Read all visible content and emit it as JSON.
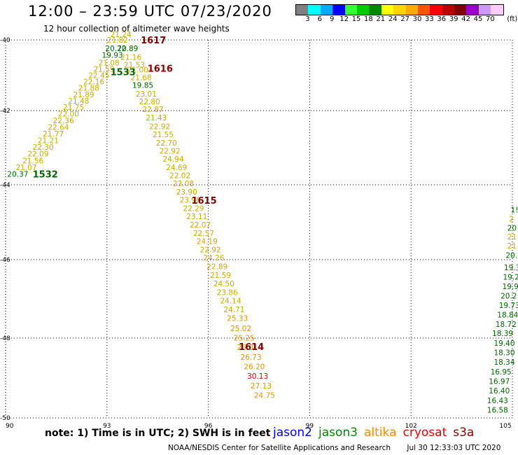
{
  "header": {
    "title": "12:00 – 23:59 UTC 07/23/2020",
    "subtitle": "12 hour collection of altimeter wave heights"
  },
  "legend": {
    "unit": "(ft)",
    "ticks": [
      "3",
      "6",
      "9",
      "12",
      "15",
      "18",
      "21",
      "24",
      "27",
      "30",
      "33",
      "36",
      "39",
      "42",
      "45",
      "70"
    ],
    "colors": [
      "#808080",
      "#00ffff",
      "#00aaff",
      "#0000ff",
      "#33ff33",
      "#00cc00",
      "#008800",
      "#ffff00",
      "#ffd700",
      "#ffaa00",
      "#ff5500",
      "#ff0000",
      "#bb0000",
      "#800000",
      "#9900cc",
      "#cc99ff",
      "#ffccff"
    ]
  },
  "map": {
    "lon_ticks": [
      "90",
      "93",
      "96",
      "99",
      "102",
      "105"
    ],
    "lat_ticks": [
      "-40",
      "-42",
      "-44",
      "-46",
      "-48",
      "-50"
    ],
    "pass_labels": [
      {
        "text": "1617",
        "color": "#800000",
        "lon": 94.0,
        "lat": -40.1
      },
      {
        "text": "1616",
        "color": "#800000",
        "lon": 94.2,
        "lat": -40.9
      },
      {
        "text": "1533",
        "color": "#006600",
        "lon": 93.1,
        "lat": -41.0
      },
      {
        "text": "1532",
        "color": "#006600",
        "lon": 90.8,
        "lat": -43.8
      },
      {
        "text": "1615",
        "color": "#800000",
        "lon": 95.5,
        "lat": -44.5
      },
      {
        "text": "1614",
        "color": "#800000",
        "lon": 96.9,
        "lat": -48.3
      }
    ],
    "tracks": [
      {
        "name": "1532-1533",
        "points": [
          {
            "v": "20.37",
            "c": "#006600",
            "lon": 90.05,
            "lat": -43.78
          },
          {
            "v": "21.07",
            "c": "#ccaa00",
            "lon": 90.3,
            "lat": -43.6
          },
          {
            "v": "21.56",
            "c": "#ccaa00",
            "lon": 90.5,
            "lat": -43.42
          },
          {
            "v": "22.09",
            "c": "#ccaa00",
            "lon": 90.65,
            "lat": -43.24
          },
          {
            "v": "22.30",
            "c": "#ccaa00",
            "lon": 90.8,
            "lat": -43.06
          },
          {
            "v": "21.21",
            "c": "#ccaa00",
            "lon": 90.95,
            "lat": -42.88
          },
          {
            "v": "21.77",
            "c": "#ccaa00",
            "lon": 91.1,
            "lat": -42.7
          },
          {
            "v": "22.64",
            "c": "#ccaa00",
            "lon": 91.25,
            "lat": -42.52
          },
          {
            "v": "22.36",
            "c": "#ccaa00",
            "lon": 91.4,
            "lat": -42.34
          },
          {
            "v": "22.00",
            "c": "#ccaa00",
            "lon": 91.55,
            "lat": -42.16
          },
          {
            "v": "21.75",
            "c": "#ccaa00",
            "lon": 91.7,
            "lat": -41.98
          },
          {
            "v": "21.48",
            "c": "#ccaa00",
            "lon": 91.85,
            "lat": -41.8
          },
          {
            "v": "21.89",
            "c": "#ccaa00",
            "lon": 92.0,
            "lat": -41.62
          },
          {
            "v": "21.88",
            "c": "#ccaa00",
            "lon": 92.15,
            "lat": -41.44
          },
          {
            "v": "22.16",
            "c": "#ccaa00",
            "lon": 92.3,
            "lat": -41.26
          },
          {
            "v": "22.45",
            "c": "#ccaa00",
            "lon": 92.45,
            "lat": -41.08
          },
          {
            "v": "21.59",
            "c": "#ccaa00",
            "lon": 92.6,
            "lat": -40.9
          },
          {
            "v": "21.08",
            "c": "#ccaa00",
            "lon": 92.75,
            "lat": -40.72
          },
          {
            "v": "19.93",
            "c": "#006600",
            "lon": 92.85,
            "lat": -40.5
          },
          {
            "v": "20.72",
            "c": "#006600",
            "lon": 92.95,
            "lat": -40.32
          }
        ]
      },
      {
        "name": "1614-1617",
        "points": [
          {
            "v": "21.24",
            "c": "#ccaa00",
            "lon": 93.1,
            "lat": -39.92
          },
          {
            "v": "21.82",
            "c": "#ccaa00",
            "lon": 93.0,
            "lat": -40.08
          },
          {
            "v": "20.89",
            "c": "#006600",
            "lon": 93.3,
            "lat": -40.32
          },
          {
            "v": "21.16",
            "c": "#ccaa00",
            "lon": 93.4,
            "lat": -40.56
          },
          {
            "v": "21.53",
            "c": "#ccaa00",
            "lon": 93.5,
            "lat": -40.78
          },
          {
            "v": "21.00",
            "c": "#ccaa00",
            "lon": 93.6,
            "lat": -40.92
          },
          {
            "v": "21.68",
            "c": "#ccaa00",
            "lon": 93.7,
            "lat": -41.14
          },
          {
            "v": "19.85",
            "c": "#006600",
            "lon": 93.75,
            "lat": -41.36
          },
          {
            "v": "23.01",
            "c": "#ccaa00",
            "lon": 93.85,
            "lat": -41.6
          },
          {
            "v": "22.80",
            "c": "#ccaa00",
            "lon": 93.95,
            "lat": -41.82
          },
          {
            "v": "22.87",
            "c": "#ccaa00",
            "lon": 94.05,
            "lat": -42.04
          },
          {
            "v": "21.43",
            "c": "#ccaa00",
            "lon": 94.15,
            "lat": -42.26
          },
          {
            "v": "22.92",
            "c": "#ccaa00",
            "lon": 94.25,
            "lat": -42.5
          },
          {
            "v": "21.55",
            "c": "#ccaa00",
            "lon": 94.35,
            "lat": -42.72
          },
          {
            "v": "22.70",
            "c": "#ccaa00",
            "lon": 94.45,
            "lat": -42.94
          },
          {
            "v": "22.92",
            "c": "#ccaa00",
            "lon": 94.55,
            "lat": -43.16
          },
          {
            "v": "24.94",
            "c": "#ccaa00",
            "lon": 94.65,
            "lat": -43.38
          },
          {
            "v": "24.69",
            "c": "#ccaa00",
            "lon": 94.75,
            "lat": -43.6
          },
          {
            "v": "22.02",
            "c": "#ccaa00",
            "lon": 94.85,
            "lat": -43.82
          },
          {
            "v": "23.08",
            "c": "#ccaa00",
            "lon": 94.95,
            "lat": -44.04
          },
          {
            "v": "23.90",
            "c": "#ccaa00",
            "lon": 95.05,
            "lat": -44.26
          },
          {
            "v": "23.98",
            "c": "#ccaa00",
            "lon": 95.15,
            "lat": -44.48
          },
          {
            "v": "22.29",
            "c": "#ccaa00",
            "lon": 95.25,
            "lat": -44.7
          },
          {
            "v": "23.11",
            "c": "#ccaa00",
            "lon": 95.35,
            "lat": -44.92
          },
          {
            "v": "22.07",
            "c": "#ccaa00",
            "lon": 95.45,
            "lat": -45.14
          },
          {
            "v": "22.57",
            "c": "#ccaa00",
            "lon": 95.55,
            "lat": -45.36
          },
          {
            "v": "24.19",
            "c": "#ccaa00",
            "lon": 95.65,
            "lat": -45.58
          },
          {
            "v": "22.92",
            "c": "#ccaa00",
            "lon": 95.75,
            "lat": -45.8
          },
          {
            "v": "24.26",
            "c": "#ccaa00",
            "lon": 95.85,
            "lat": -46.02
          },
          {
            "v": "22.89",
            "c": "#ccaa00",
            "lon": 95.95,
            "lat": -46.24
          },
          {
            "v": "21.59",
            "c": "#ccaa00",
            "lon": 96.05,
            "lat": -46.46
          },
          {
            "v": "24.50",
            "c": "#ccaa00",
            "lon": 96.15,
            "lat": -46.68
          },
          {
            "v": "23.86",
            "c": "#ccaa00",
            "lon": 96.25,
            "lat": -46.9
          },
          {
            "v": "24.14",
            "c": "#ccaa00",
            "lon": 96.35,
            "lat": -47.12
          },
          {
            "v": "24.71",
            "c": "#ccaa00",
            "lon": 96.45,
            "lat": -47.34
          },
          {
            "v": "25.33",
            "c": "#dd9900",
            "lon": 96.55,
            "lat": -47.56
          },
          {
            "v": "25.02",
            "c": "#dd9900",
            "lon": 96.65,
            "lat": -47.82
          },
          {
            "v": "25.25",
            "c": "#dd9900",
            "lon": 96.75,
            "lat": -48.06
          },
          {
            "v": "26.01",
            "c": "#dd9900",
            "lon": 96.85,
            "lat": -48.3
          },
          {
            "v": "26.73",
            "c": "#dd9900",
            "lon": 96.95,
            "lat": -48.54
          },
          {
            "v": "26.20",
            "c": "#dd9900",
            "lon": 97.05,
            "lat": -48.78
          },
          {
            "v": "30.13",
            "c": "#dd0000",
            "lon": 97.15,
            "lat": -49.02
          },
          {
            "v": "27.13",
            "c": "#dd9900",
            "lon": 97.25,
            "lat": -49.26
          },
          {
            "v": "24.75",
            "c": "#dd9900",
            "lon": 97.35,
            "lat": -49.5
          }
        ]
      },
      {
        "name": "east-edge",
        "points": [
          {
            "v": "18.39",
            "c": "#006600",
            "lon": 104.4,
            "lat": -47.95
          },
          {
            "v": "19.40",
            "c": "#006600",
            "lon": 104.45,
            "lat": -48.19
          },
          {
            "v": "18.30",
            "c": "#006600",
            "lon": 104.45,
            "lat": -48.43
          },
          {
            "v": "18.34",
            "c": "#006600",
            "lon": 104.45,
            "lat": -48.67
          },
          {
            "v": "16.95",
            "c": "#006600",
            "lon": 104.35,
            "lat": -48.91
          },
          {
            "v": "16.97",
            "c": "#006600",
            "lon": 104.3,
            "lat": -49.15
          },
          {
            "v": "16.40",
            "c": "#006600",
            "lon": 104.3,
            "lat": -49.39
          },
          {
            "v": "16.43",
            "c": "#006600",
            "lon": 104.25,
            "lat": -49.63
          },
          {
            "v": "16.58",
            "c": "#006600",
            "lon": 104.25,
            "lat": -49.87
          },
          {
            "v": "18.72",
            "c": "#006600",
            "lon": 104.5,
            "lat": -47.71
          },
          {
            "v": "18.84",
            "c": "#006600",
            "lon": 104.55,
            "lat": -47.47
          },
          {
            "v": "19.73",
            "c": "#006600",
            "lon": 104.6,
            "lat": -47.23
          },
          {
            "v": "20.2",
            "c": "#006600",
            "lon": 104.65,
            "lat": -46.99
          },
          {
            "v": "19.9",
            "c": "#006600",
            "lon": 104.7,
            "lat": -46.75
          },
          {
            "v": "19.2",
            "c": "#006600",
            "lon": 104.72,
            "lat": -46.51
          },
          {
            "v": "19.3",
            "c": "#006600",
            "lon": 104.75,
            "lat": -46.27
          },
          {
            "v": "20.",
            "c": "#006600",
            "lon": 104.8,
            "lat": -45.95
          },
          {
            "v": "21",
            "c": "#ccaa00",
            "lon": 104.85,
            "lat": -45.7
          },
          {
            "v": "21",
            "c": "#ccaa00",
            "lon": 104.85,
            "lat": -45.46
          },
          {
            "v": "20",
            "c": "#006600",
            "lon": 104.85,
            "lat": -45.22
          },
          {
            "v": "2",
            "c": "#ccaa00",
            "lon": 104.9,
            "lat": -44.98
          },
          {
            "v": "1!",
            "c": "#006600",
            "lon": 104.95,
            "lat": -44.74
          }
        ]
      }
    ]
  },
  "bottom": {
    "note": "note:  1) Time is in UTC;  2) SWH is in feet",
    "satellites": [
      {
        "name": "jason2",
        "color": "#0000ee"
      },
      {
        "name": "jason3",
        "color": "#008800"
      },
      {
        "name": "altika",
        "color": "#ff8800"
      },
      {
        "name": "cryosat",
        "color": "#ee0000"
      },
      {
        "name": "s3a",
        "color": "#880000"
      }
    ],
    "footer_org": "NOAA/NESDIS Center for Satellite Applications and Research",
    "footer_time": "Jul 30 12:33:03 UTC 2020"
  }
}
